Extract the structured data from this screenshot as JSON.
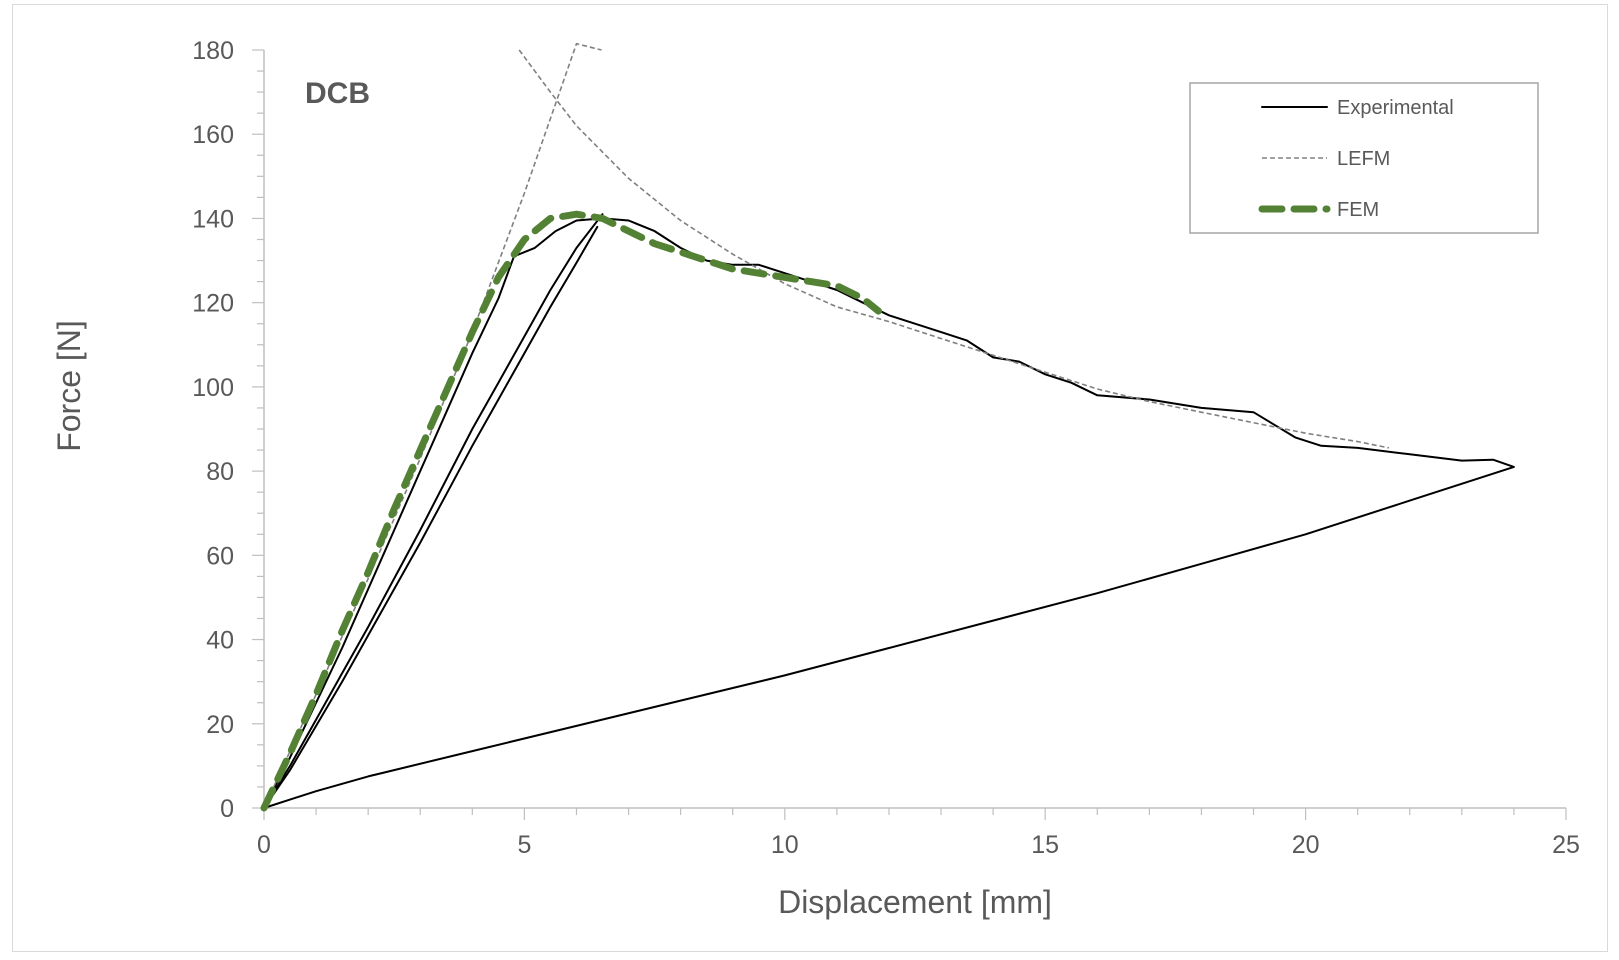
{
  "chart_data": {
    "type": "line",
    "title": "",
    "annotation": "DCB",
    "xlabel": "Displacement [mm]",
    "ylabel": "Force [N]",
    "xlim": [
      0,
      25
    ],
    "ylim": [
      0,
      180
    ],
    "xticks": [
      0,
      5,
      10,
      15,
      20,
      25
    ],
    "yticks": [
      0,
      20,
      40,
      60,
      80,
      100,
      120,
      140,
      160,
      180
    ],
    "grid": false,
    "legend_position": "top-right",
    "series": [
      {
        "name": "Experimental",
        "style": "solid",
        "color": "#000000",
        "points": [
          [
            0,
            0
          ],
          [
            0.5,
            12
          ],
          [
            1,
            25
          ],
          [
            1.5,
            38
          ],
          [
            2,
            52
          ],
          [
            2.5,
            66
          ],
          [
            3,
            80
          ],
          [
            3.5,
            94
          ],
          [
            4,
            108
          ],
          [
            4.5,
            121
          ],
          [
            4.8,
            131
          ],
          [
            5.2,
            133
          ],
          [
            5.6,
            137
          ],
          [
            6,
            139.5
          ],
          [
            6.5,
            140
          ],
          [
            7,
            139.5
          ],
          [
            7.5,
            137
          ],
          [
            8,
            133
          ],
          [
            8.5,
            130
          ],
          [
            9,
            129
          ],
          [
            9.5,
            129
          ],
          [
            10,
            127
          ],
          [
            10.5,
            125
          ],
          [
            11,
            123
          ],
          [
            11.5,
            120
          ],
          [
            12,
            117
          ],
          [
            12.5,
            115
          ],
          [
            13,
            113
          ],
          [
            13.5,
            111
          ],
          [
            14,
            107
          ],
          [
            14.5,
            106
          ],
          [
            15,
            103
          ],
          [
            15.5,
            101
          ],
          [
            16,
            98
          ],
          [
            17,
            97
          ],
          [
            18,
            95
          ],
          [
            19,
            94
          ],
          [
            19.4,
            91
          ],
          [
            19.8,
            88
          ],
          [
            20.3,
            86
          ],
          [
            21,
            85.5
          ],
          [
            22,
            84
          ],
          [
            23,
            82.5
          ],
          [
            23.6,
            82.7
          ],
          [
            24,
            81
          ],
          [
            22,
            73
          ],
          [
            20,
            65
          ],
          [
            18,
            58
          ],
          [
            16,
            51
          ],
          [
            14,
            44.5
          ],
          [
            12,
            38
          ],
          [
            10,
            31.5
          ],
          [
            8,
            25.5
          ],
          [
            6,
            19.5
          ],
          [
            4,
            13.5
          ],
          [
            2,
            7.5
          ],
          [
            1,
            4
          ],
          [
            0.5,
            2
          ],
          [
            0,
            0
          ]
        ]
      },
      {
        "name": "Experimental",
        "style": "solid",
        "color": "#000000",
        "points": [
          [
            0,
            0
          ],
          [
            0.5,
            10
          ],
          [
            1,
            21
          ],
          [
            1.5,
            32
          ],
          [
            2,
            43
          ],
          [
            2.5,
            54.5
          ],
          [
            3,
            66
          ],
          [
            3.5,
            78
          ],
          [
            4,
            90
          ],
          [
            4.5,
            101
          ],
          [
            5,
            112
          ],
          [
            5.5,
            123
          ],
          [
            6,
            133
          ],
          [
            6.5,
            141
          ]
        ]
      },
      {
        "name": "Experimental",
        "style": "solid",
        "color": "#000000",
        "points": [
          [
            0,
            0
          ],
          [
            0.5,
            9
          ],
          [
            1,
            19.5
          ],
          [
            1.5,
            30
          ],
          [
            2,
            41
          ],
          [
            2.5,
            52
          ],
          [
            3,
            63
          ],
          [
            3.5,
            74.5
          ],
          [
            4,
            86
          ],
          [
            4.5,
            97
          ],
          [
            5,
            108
          ],
          [
            5.5,
            119
          ],
          [
            6,
            129.5
          ],
          [
            6.4,
            138
          ]
        ]
      },
      {
        "name": "LEFM",
        "style": "dashed",
        "color": "#808080",
        "points": [
          [
            0,
            0
          ],
          [
            1,
            27
          ],
          [
            2,
            54.5
          ],
          [
            3,
            83
          ],
          [
            4,
            113
          ],
          [
            5,
            146
          ],
          [
            6,
            181.5
          ],
          [
            6.48,
            180
          ]
        ]
      },
      {
        "name": "LEFM",
        "style": "dashed",
        "color": "#808080",
        "points": [
          [
            4.9,
            180
          ],
          [
            5.5,
            170
          ],
          [
            6,
            162
          ],
          [
            7,
            149.5
          ],
          [
            8,
            139.5
          ],
          [
            9,
            131.5
          ],
          [
            10,
            124.5
          ],
          [
            11,
            119
          ],
          [
            12,
            115.5
          ],
          [
            13,
            111.5
          ],
          [
            14,
            107.5
          ],
          [
            15,
            103.5
          ],
          [
            16,
            99.5
          ],
          [
            17,
            96.5
          ],
          [
            18,
            94
          ],
          [
            19,
            91.5
          ],
          [
            20,
            89
          ],
          [
            21,
            87
          ],
          [
            21.6,
            85.5
          ]
        ]
      },
      {
        "name": "FEM",
        "style": "dashed-thick",
        "color": "#548235",
        "points": [
          [
            0,
            0
          ],
          [
            0.5,
            13
          ],
          [
            1,
            27
          ],
          [
            1.5,
            42
          ],
          [
            2,
            56
          ],
          [
            2.5,
            71
          ],
          [
            3,
            85
          ],
          [
            3.5,
            99
          ],
          [
            4,
            113
          ],
          [
            4.5,
            126
          ],
          [
            5,
            135
          ],
          [
            5.5,
            140
          ],
          [
            6,
            141
          ],
          [
            6.5,
            140
          ],
          [
            7,
            137
          ],
          [
            7.5,
            134
          ],
          [
            8,
            132
          ],
          [
            8.5,
            130
          ],
          [
            9,
            128
          ],
          [
            9.5,
            127
          ],
          [
            10,
            126
          ],
          [
            10.5,
            125
          ],
          [
            11,
            124
          ],
          [
            11.5,
            121
          ],
          [
            11.8,
            118
          ]
        ]
      }
    ]
  }
}
